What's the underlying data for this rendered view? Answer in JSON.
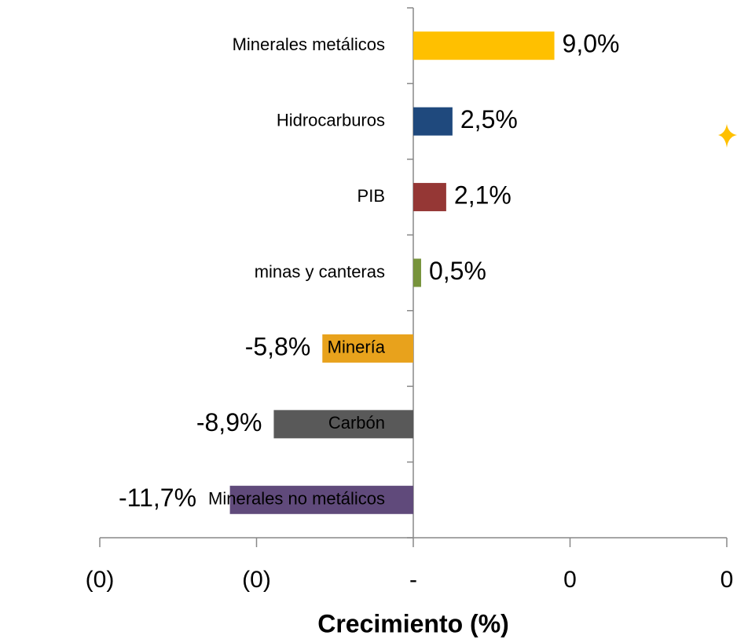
{
  "chart_data": {
    "type": "barh",
    "xlabel": "Crecimiento (%)",
    "categories": [
      "Minerales metálicos",
      "Hidrocarburos",
      "PIB",
      "minas y canteras",
      "Minería",
      "Carbón",
      "Minerales no metálicos"
    ],
    "values": [
      9.0,
      2.5,
      2.1,
      0.5,
      -5.8,
      -8.9,
      -11.7
    ],
    "value_labels": [
      "9,0%",
      "2,5%",
      "2,1%",
      "0,5%",
      "-5,8%",
      "-8,9%",
      "-11,7%"
    ],
    "colors": [
      "#ffc000",
      "#1f497d",
      "#953735",
      "#77933c",
      "#e8a21c",
      "#595959",
      "#604a7b"
    ],
    "xlim": [
      -20,
      20
    ],
    "xticks": [
      {
        "value": -20,
        "label": "(0)"
      },
      {
        "value": -10,
        "label": "(0)"
      },
      {
        "value": 0,
        "label": "-"
      },
      {
        "value": 10,
        "label": "0"
      },
      {
        "value": 20,
        "label": "0"
      }
    ]
  }
}
